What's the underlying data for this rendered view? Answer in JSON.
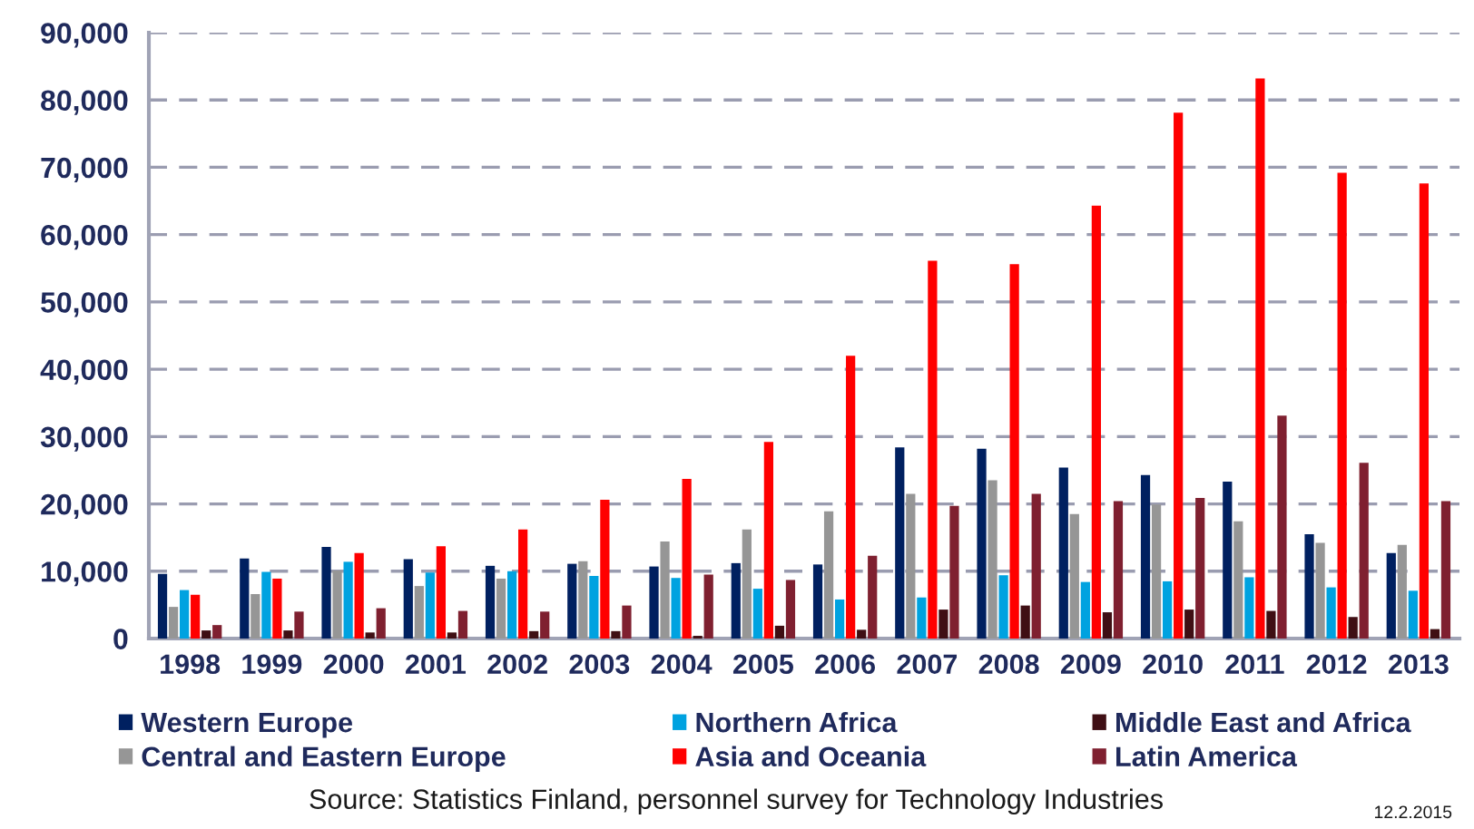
{
  "chart_data": {
    "type": "bar",
    "categories": [
      "1998",
      "1999",
      "2000",
      "2001",
      "2002",
      "2003",
      "2004",
      "2005",
      "2006",
      "2007",
      "2008",
      "2009",
      "2010",
      "2011",
      "2012",
      "2013"
    ],
    "series": [
      {
        "name": "Western Europe",
        "color": "#002060",
        "values": [
          9600,
          11900,
          13600,
          11800,
          10800,
          11100,
          10700,
          11200,
          11000,
          28400,
          28200,
          25400,
          24300,
          23300,
          15500,
          12700
        ]
      },
      {
        "name": "Central and Eastern Europe",
        "color": "#969696",
        "values": [
          4700,
          6600,
          10100,
          7800,
          8900,
          11500,
          14400,
          16200,
          18900,
          21500,
          23500,
          18500,
          19900,
          17400,
          14200,
          13900
        ]
      },
      {
        "name": "Northern Africa",
        "color": "#00a2e0",
        "values": [
          7200,
          9900,
          11400,
          9800,
          10000,
          9300,
          9000,
          7400,
          5800,
          6100,
          9400,
          8400,
          8500,
          9100,
          7600,
          7100
        ]
      },
      {
        "name": "Asia and Oceania",
        "color": "#ff0000",
        "values": [
          6500,
          8900,
          12700,
          13700,
          16200,
          20600,
          23700,
          29200,
          42000,
          56100,
          55600,
          64300,
          78100,
          83200,
          69200,
          67600
        ]
      },
      {
        "name": "Middle East and Africa",
        "color": "#3f0f14",
        "values": [
          1200,
          1200,
          900,
          900,
          1100,
          1100,
          400,
          1900,
          1300,
          4300,
          4900,
          3900,
          4300,
          4100,
          3200,
          1400
        ]
      },
      {
        "name": "Latin America",
        "color": "#7f2030",
        "values": [
          2000,
          4000,
          4500,
          4100,
          4000,
          4900,
          9500,
          8700,
          12300,
          19700,
          21500,
          20400,
          20900,
          33100,
          26100,
          20400
        ]
      }
    ],
    "ylim": [
      0,
      90000
    ],
    "yticks": [
      {
        "value": 0,
        "label": "0"
      },
      {
        "value": 10000,
        "label": "10,000"
      },
      {
        "value": 20000,
        "label": "20,000"
      },
      {
        "value": 30000,
        "label": "30,000"
      },
      {
        "value": 40000,
        "label": "40,000"
      },
      {
        "value": 50000,
        "label": "50,000"
      },
      {
        "value": 60000,
        "label": "60,000"
      },
      {
        "value": 70000,
        "label": "70,000"
      },
      {
        "value": 80000,
        "label": "80,000"
      },
      {
        "value": 90000,
        "label": "90,000"
      }
    ],
    "grid": "y",
    "legend": "bottom",
    "annotations": [
      "Source: Statistics Finland, personnel survey for Technology Industries",
      "12.2.2015"
    ]
  }
}
